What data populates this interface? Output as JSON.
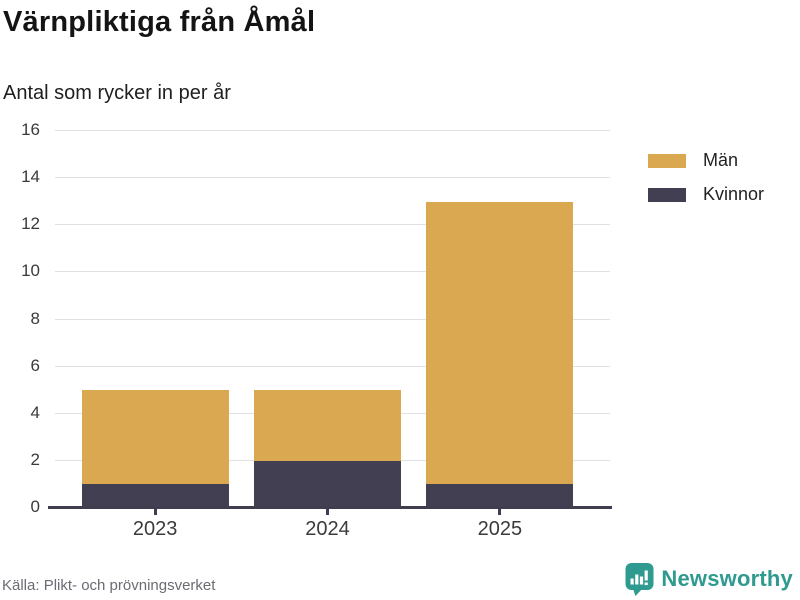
{
  "header": {
    "title": "Värnpliktiga från Åmål",
    "subtitle": "Antal som rycker in per år"
  },
  "chart_data": {
    "type": "bar",
    "stacked": true,
    "title": "Värnpliktiga från Åmål",
    "subtitle": "Antal som rycker in per år",
    "categories": [
      "2023",
      "2024",
      "2025"
    ],
    "series": [
      {
        "name": "Män",
        "values": [
          4,
          3,
          12
        ],
        "color": "#d9a851"
      },
      {
        "name": "Kvinnor",
        "values": [
          1,
          2,
          1
        ],
        "color": "#413f51"
      }
    ],
    "stack_bottom_to_top": [
      "Kvinnor",
      "Män"
    ],
    "totals": [
      5,
      5,
      13
    ],
    "xlabel": "",
    "ylabel": "",
    "ylim": [
      0,
      16
    ],
    "ytick_step": 2,
    "grid": true,
    "legend_position": "top-right"
  },
  "legend": {
    "items": [
      {
        "label": "Män",
        "color": "#d9a851"
      },
      {
        "label": "Kvinnor",
        "color": "#413f51"
      }
    ]
  },
  "footer": {
    "source": "Källa: Plikt- och prövningsverket",
    "brand": "Newsworthy",
    "brand_color": "#2f9a8f"
  },
  "colors": {
    "axis": "#3f3d4e",
    "gridline": "#e1e1e4",
    "men": "#d9a851",
    "women": "#413f51",
    "teal": "#2f9a8f"
  }
}
